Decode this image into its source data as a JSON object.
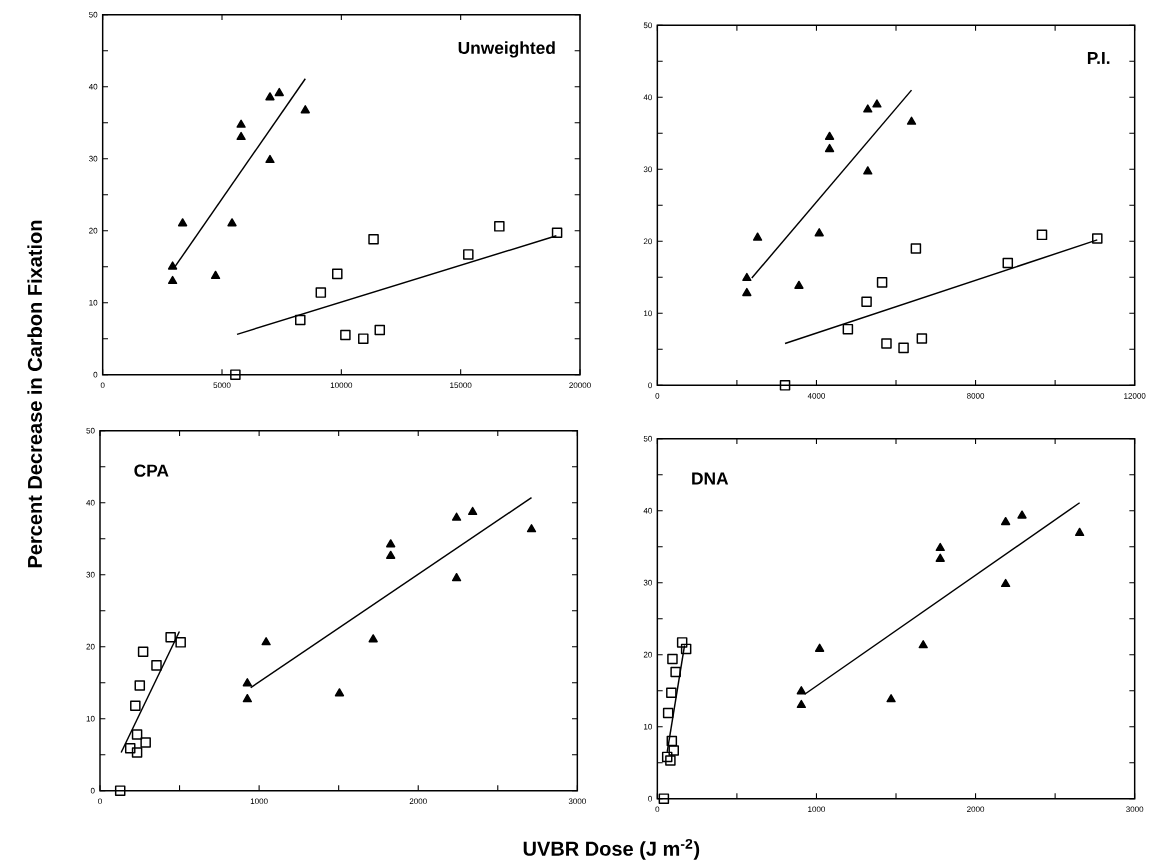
{
  "chart_data": [
    {
      "type": "scatter",
      "title": "Unweighted",
      "ylabel": "Percent Decrease in Carbon Fixation",
      "xlim": [
        0,
        20000
      ],
      "ylim": [
        0,
        50
      ],
      "xticks": [
        0,
        5000,
        10000,
        15000,
        20000
      ],
      "yticks": [
        0,
        {
          "value": 5,
          "label": null
        },
        10,
        {
          "value": 15,
          "label": null
        },
        20,
        {
          "value": 25,
          "label": null
        },
        30,
        {
          "value": 35,
          "label": null
        },
        40,
        {
          "value": 45,
          "label": null
        },
        50
      ],
      "series": [
        {
          "marker": "triangle",
          "color": "#000000",
          "x": [
            2930,
            2930,
            3350,
            4730,
            5420,
            5800,
            5800,
            7010,
            7400,
            7010,
            8490
          ],
          "values": [
            15,
            13,
            21,
            13.7,
            21,
            34.7,
            33,
            38.5,
            39.1,
            29.8,
            36.7
          ]
        },
        {
          "type": "line",
          "marker": "none",
          "color": "#000000",
          "x": [
            3030,
            8490
          ],
          "values": [
            15,
            41.1
          ]
        },
        {
          "marker": "square",
          "color": "#000000",
          "x": [
            5560,
            8280,
            9140,
            9830,
            11350,
            10170,
            10920,
            11610,
            15320,
            16620,
            19040
          ],
          "values": [
            0,
            7.6,
            11.4,
            14,
            18.8,
            5.5,
            5,
            6.2,
            16.7,
            20.6,
            19.7
          ]
        },
        {
          "type": "line",
          "marker": "none",
          "color": "#000000",
          "x": [
            5630,
            19010
          ],
          "values": [
            5.6,
            19.3
          ]
        }
      ]
    },
    {
      "type": "scatter",
      "title": "P.I.",
      "xlim": [
        0,
        12000
      ],
      "ylim": [
        0,
        50
      ],
      "xticks": [
        0,
        {
          "value": 2000,
          "label": null
        },
        4000,
        {
          "value": 6000,
          "label": null
        },
        8000,
        {
          "value": 10000,
          "label": null
        },
        12000
      ],
      "yticks": [
        0,
        {
          "value": 5,
          "label": null
        },
        10,
        {
          "value": 15,
          "label": null
        },
        20,
        {
          "value": 25,
          "label": null
        },
        30,
        {
          "value": 35,
          "label": null
        },
        40,
        {
          "value": 45,
          "label": null
        },
        50
      ],
      "series": [
        {
          "marker": "triangle",
          "color": "#000000",
          "x": [
            2250,
            2250,
            2520,
            3560,
            4070,
            4330,
            4330,
            5290,
            5520,
            5290,
            6390
          ],
          "values": [
            14.9,
            12.8,
            20.5,
            13.8,
            21.1,
            34.5,
            32.8,
            38.3,
            39,
            29.7,
            36.6
          ]
        },
        {
          "type": "line",
          "marker": "none",
          "color": "#000000",
          "x": [
            2375,
            6390
          ],
          "values": [
            14.9,
            41
          ]
        },
        {
          "marker": "square",
          "color": "#000000",
          "x": [
            3210,
            4790,
            5260,
            5650,
            6500,
            5760,
            6190,
            6650,
            8810,
            9670,
            11060
          ],
          "values": [
            0,
            7.8,
            11.6,
            14.3,
            19,
            5.8,
            5.2,
            6.5,
            17,
            20.9,
            20.4
          ]
        },
        {
          "type": "line",
          "marker": "none",
          "color": "#000000",
          "x": [
            3210,
            11060
          ],
          "values": [
            5.8,
            20.2
          ]
        }
      ]
    },
    {
      "type": "scatter",
      "title": "CPA",
      "xlabel": "UVBR Dose (J m$^{-2}$)",
      "xlim": [
        0,
        3000
      ],
      "ylim": [
        0,
        50
      ],
      "xticks": [
        0,
        {
          "value": 500,
          "label": null
        },
        1000,
        {
          "value": 1500,
          "label": null
        },
        2000,
        {
          "value": 2500,
          "label": null
        },
        3000
      ],
      "yticks": [
        0,
        {
          "value": 5,
          "label": null
        },
        10,
        {
          "value": 15,
          "label": null
        },
        20,
        {
          "value": 25,
          "label": null
        },
        30,
        {
          "value": 35,
          "label": null
        },
        40,
        {
          "value": 45,
          "label": null
        },
        50
      ],
      "series": [
        {
          "marker": "triangle",
          "color": "#000000",
          "x": [
            926,
            926,
            1044,
            1505,
            1717,
            1827,
            1827,
            2241,
            2342,
            2241,
            2712
          ],
          "values": [
            14.9,
            12.7,
            20.6,
            13.5,
            21,
            34.2,
            32.6,
            37.9,
            38.7,
            29.5,
            36.3
          ]
        },
        {
          "type": "line",
          "marker": "none",
          "color": "#000000",
          "x": [
            947,
            2712
          ],
          "values": [
            14.3,
            40.7
          ]
        },
        {
          "marker": "square",
          "color": "#000000",
          "x": [
            127,
            190,
            233,
            233,
            287,
            222,
            250,
            271,
            355,
            444,
            507
          ],
          "values": [
            0,
            5.9,
            5.3,
            7.8,
            6.7,
            11.8,
            14.6,
            19.3,
            17.4,
            21.3,
            20.6
          ]
        },
        {
          "type": "line",
          "marker": "none",
          "color": "#000000",
          "x": [
            133,
            499
          ],
          "values": [
            5.3,
            22.1
          ]
        }
      ]
    },
    {
      "type": "scatter",
      "title": "DNA",
      "xlim": [
        0,
        3000
      ],
      "ylim": [
        0,
        50
      ],
      "xticks": [
        0,
        {
          "value": 500,
          "label": null
        },
        1000,
        {
          "value": 1500,
          "label": null
        },
        2000,
        {
          "value": 2500,
          "label": null
        },
        3000
      ],
      "yticks": [
        0,
        {
          "value": 5,
          "label": null
        },
        10,
        {
          "value": 15,
          "label": null
        },
        20,
        {
          "value": 25,
          "label": null
        },
        30,
        {
          "value": 35,
          "label": null
        },
        40,
        {
          "value": 45,
          "label": null
        },
        50
      ],
      "series": [
        {
          "marker": "triangle",
          "color": "#000000",
          "x": [
            905,
            905,
            1020,
            1469,
            1671,
            1778,
            1778,
            2189,
            2292,
            2189,
            2654
          ],
          "values": [
            14.9,
            13,
            20.8,
            13.8,
            21.3,
            34.8,
            33.3,
            38.4,
            39.3,
            29.8,
            36.9
          ]
        },
        {
          "type": "line",
          "marker": "none",
          "color": "#000000",
          "x": [
            926,
            2654
          ],
          "values": [
            14.5,
            41.1
          ]
        },
        {
          "marker": "square",
          "color": "#000000",
          "x": [
            41,
            62,
            82,
            103,
            91,
            68,
            88,
            95,
            115,
            156,
            181
          ],
          "values": [
            0,
            5.8,
            5.3,
            6.7,
            8,
            11.9,
            14.7,
            19.4,
            17.6,
            21.7,
            20.8
          ]
        },
        {
          "type": "line",
          "marker": "none",
          "color": "#000000",
          "x": [
            62,
            171
          ],
          "values": [
            6.5,
            21.3
          ]
        }
      ]
    }
  ]
}
